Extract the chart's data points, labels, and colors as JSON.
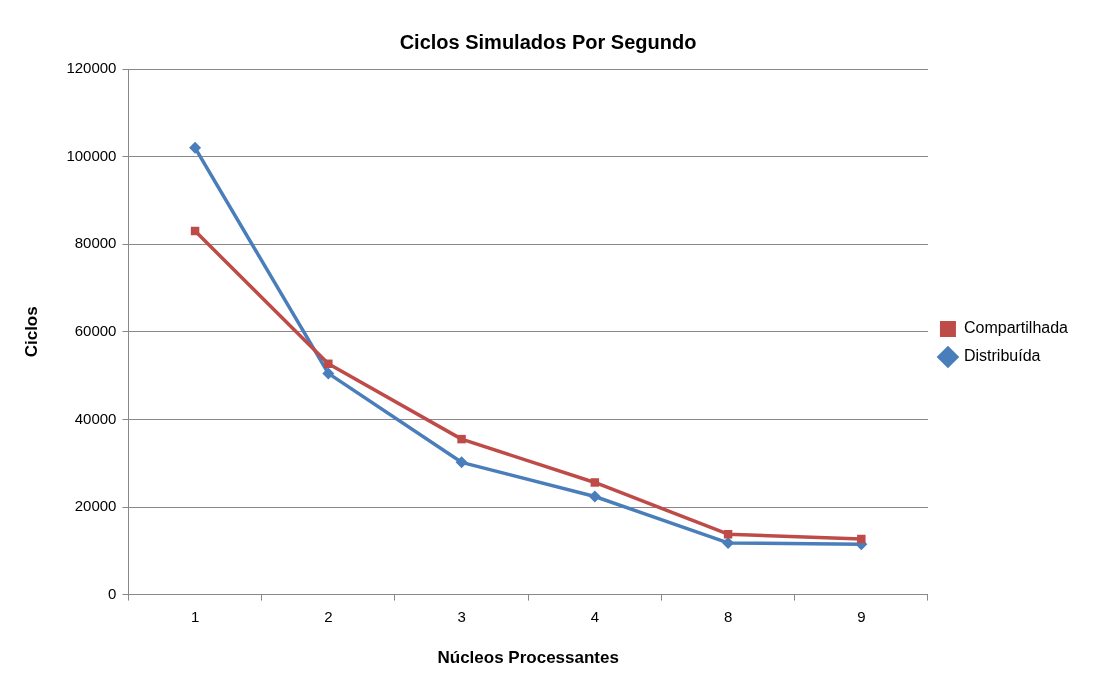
{
  "chart_data": {
    "type": "line",
    "title": "Ciclos Simulados Por Segundo",
    "xlabel": "Núcleos Processantes",
    "ylabel": "Ciclos",
    "categories": [
      "1",
      "2",
      "3",
      "4",
      "8",
      "9"
    ],
    "series": [
      {
        "name": "Compartilhada",
        "color": "#be4b48",
        "marker": "square",
        "values": [
          83000,
          52700,
          35500,
          25600,
          13800,
          12700
        ]
      },
      {
        "name": "Distribuída",
        "color": "#4a7ebb",
        "marker": "diamond",
        "values": [
          102000,
          50500,
          30200,
          22400,
          11800,
          11500
        ]
      }
    ],
    "ylim": [
      0,
      120000
    ],
    "yticks": [
      0,
      20000,
      40000,
      60000,
      80000,
      100000,
      120000
    ],
    "grid": "y",
    "legend": "right"
  }
}
